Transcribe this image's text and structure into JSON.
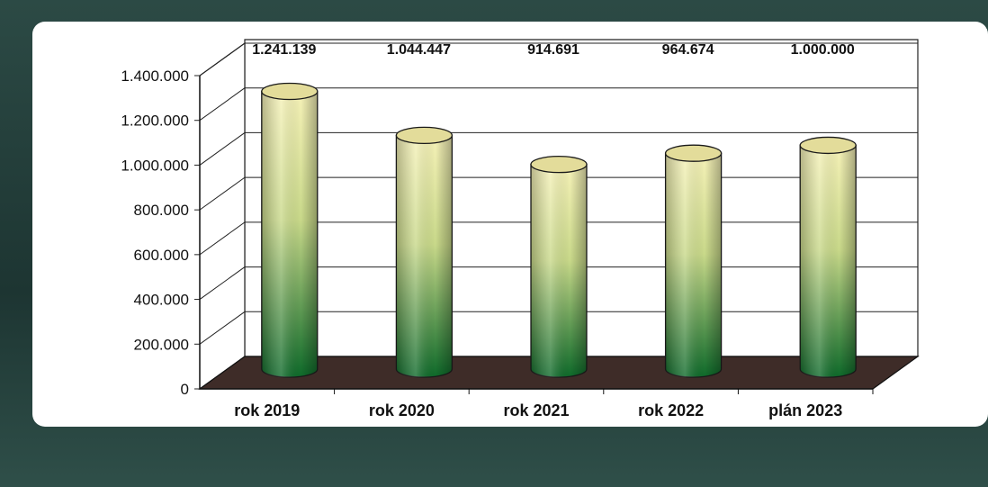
{
  "chart_data": {
    "type": "bar",
    "style": "3d-cylinder",
    "categories": [
      "rok 2019",
      "rok 2020",
      "rok 2021",
      "rok 2022",
      "plán 2023"
    ],
    "values": [
      1241139,
      1044447,
      914691,
      964674,
      1000000
    ],
    "data_labels": [
      "1.241.139",
      "1.044.447",
      "914.691",
      "964.674",
      "1.000.000"
    ],
    "yticks": [
      0,
      200000,
      400000,
      600000,
      800000,
      1000000,
      1200000,
      1400000
    ],
    "ytick_labels": [
      "0",
      "200.000",
      "400.000",
      "600.000",
      "800.000",
      "1.000.000",
      "1.200.000",
      "1.400.000"
    ],
    "ylim": [
      0,
      1400000
    ],
    "grid": true,
    "legend": "none",
    "title": "",
    "xlabel": "",
    "ylabel": ""
  },
  "colors": {
    "bar_top": "#f6f2b8",
    "bar_mid": "#c9d98a",
    "bar_bottom": "#0e6a2a",
    "floor": "#3e2c28",
    "frame": "#1f3b36",
    "panel": "#ffffff"
  }
}
